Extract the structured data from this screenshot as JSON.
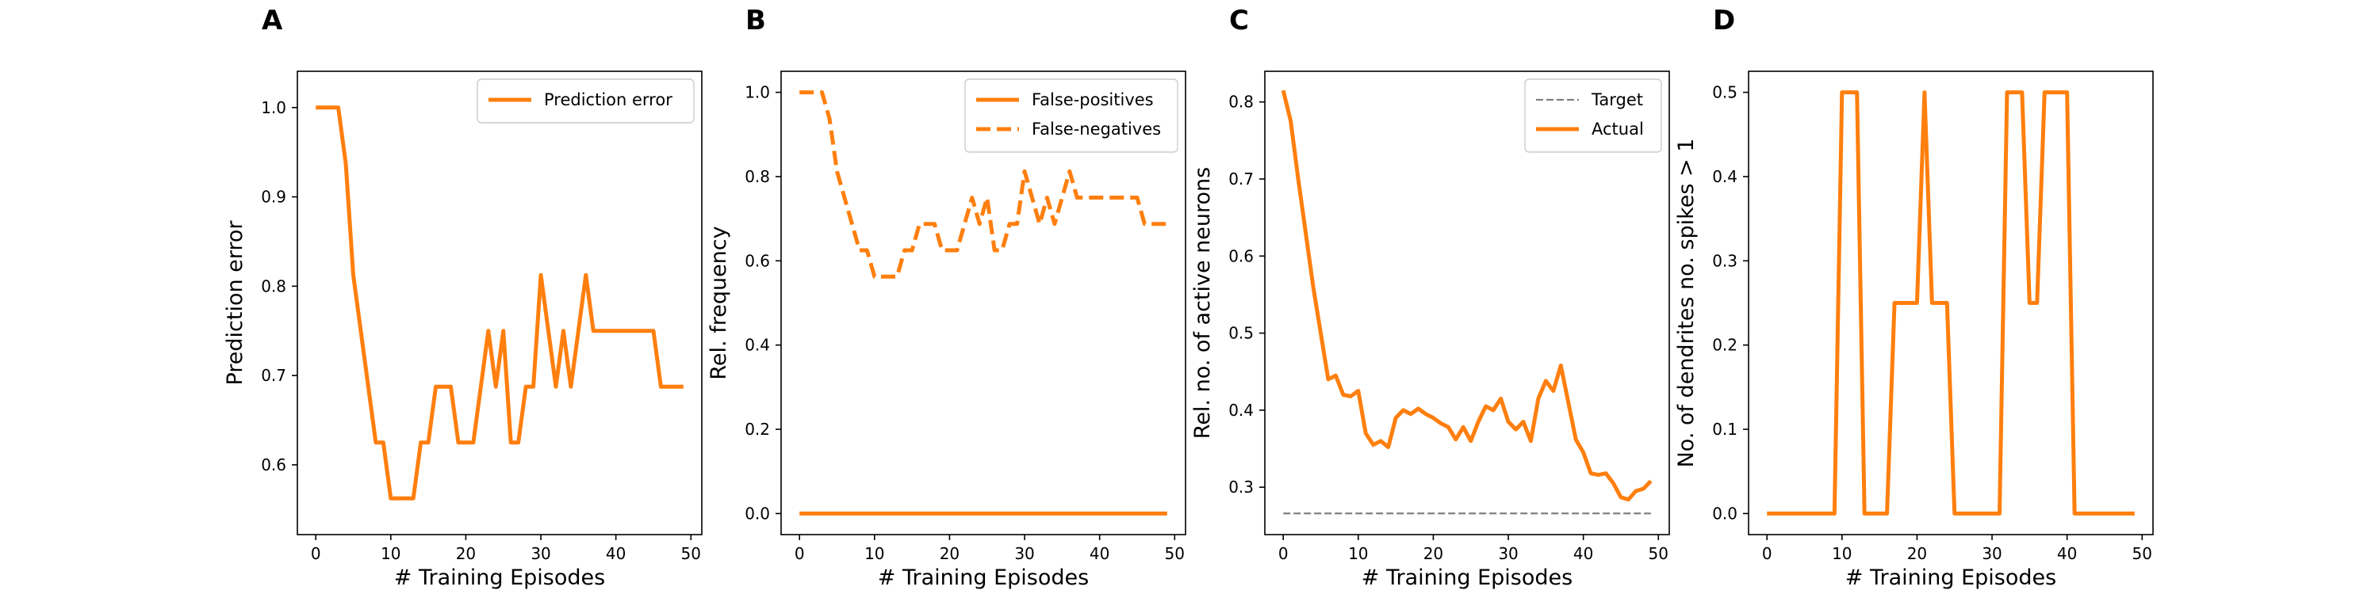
{
  "colors": {
    "series": "#ff7f0e",
    "target": "#808080",
    "axes": "#000000",
    "legend_border": "#cccccc"
  },
  "chart_data": [
    {
      "panel_label": "A",
      "type": "line",
      "xlabel": "# Training Episodes",
      "ylabel": "Prediction error",
      "xlim": [
        -2.45,
        51.45
      ],
      "ylim": [
        0.5219,
        1.0406
      ],
      "xticks": [
        0,
        10,
        20,
        30,
        40,
        50
      ],
      "yticks": [
        0.6,
        0.7,
        0.8,
        0.9,
        1.0
      ],
      "ytick_labels": [
        "0.6",
        "0.7",
        "0.8",
        "0.9",
        "1.0"
      ],
      "legend_position": "top-right",
      "x": [
        0,
        1,
        2,
        3,
        4,
        5,
        6,
        7,
        8,
        9,
        10,
        11,
        12,
        13,
        14,
        15,
        16,
        17,
        18,
        19,
        20,
        21,
        22,
        23,
        24,
        25,
        26,
        27,
        28,
        29,
        30,
        31,
        32,
        33,
        34,
        35,
        36,
        37,
        38,
        39,
        40,
        41,
        42,
        43,
        44,
        45,
        46,
        47,
        48,
        49
      ],
      "series": [
        {
          "name": "Prediction error",
          "style": "solid",
          "values": [
            1.0,
            1.0,
            1.0,
            1.0,
            0.9375,
            0.8125,
            0.75,
            0.6875,
            0.625,
            0.625,
            0.5625,
            0.5625,
            0.5625,
            0.5625,
            0.625,
            0.625,
            0.6875,
            0.6875,
            0.6875,
            0.625,
            0.625,
            0.625,
            0.6875,
            0.75,
            0.6875,
            0.75,
            0.625,
            0.625,
            0.6875,
            0.6875,
            0.8125,
            0.75,
            0.6875,
            0.75,
            0.6875,
            0.75,
            0.8125,
            0.75,
            0.75,
            0.75,
            0.75,
            0.75,
            0.75,
            0.75,
            0.75,
            0.75,
            0.6875,
            0.6875,
            0.6875,
            0.6875
          ]
        }
      ]
    },
    {
      "panel_label": "B",
      "type": "line",
      "xlabel": "# Training Episodes",
      "ylabel": "Rel. frequency",
      "xlim": [
        -2.45,
        51.45
      ],
      "ylim": [
        -0.05,
        1.05
      ],
      "xticks": [
        0,
        10,
        20,
        30,
        40,
        50
      ],
      "yticks": [
        0.0,
        0.2,
        0.4,
        0.6,
        0.8,
        1.0
      ],
      "ytick_labels": [
        "0.0",
        "0.2",
        "0.4",
        "0.6",
        "0.8",
        "1.0"
      ],
      "legend_position": "top-right",
      "x": [
        0,
        1,
        2,
        3,
        4,
        5,
        6,
        7,
        8,
        9,
        10,
        11,
        12,
        13,
        14,
        15,
        16,
        17,
        18,
        19,
        20,
        21,
        22,
        23,
        24,
        25,
        26,
        27,
        28,
        29,
        30,
        31,
        32,
        33,
        34,
        35,
        36,
        37,
        38,
        39,
        40,
        41,
        42,
        43,
        44,
        45,
        46,
        47,
        48,
        49
      ],
      "series": [
        {
          "name": "False-positives",
          "style": "solid",
          "values": [
            0,
            0,
            0,
            0,
            0,
            0,
            0,
            0,
            0,
            0,
            0,
            0,
            0,
            0,
            0,
            0,
            0,
            0,
            0,
            0,
            0,
            0,
            0,
            0,
            0,
            0,
            0,
            0,
            0,
            0,
            0,
            0,
            0,
            0,
            0,
            0,
            0,
            0,
            0,
            0,
            0,
            0,
            0,
            0,
            0,
            0,
            0,
            0,
            0,
            0
          ]
        },
        {
          "name": "False-negatives",
          "style": "dashed",
          "values": [
            1.0,
            1.0,
            1.0,
            1.0,
            0.9375,
            0.8125,
            0.75,
            0.6875,
            0.625,
            0.625,
            0.5625,
            0.5625,
            0.5625,
            0.5625,
            0.625,
            0.625,
            0.6875,
            0.6875,
            0.6875,
            0.625,
            0.625,
            0.625,
            0.6875,
            0.75,
            0.6875,
            0.75,
            0.625,
            0.625,
            0.6875,
            0.6875,
            0.8125,
            0.75,
            0.6875,
            0.75,
            0.6875,
            0.75,
            0.8125,
            0.75,
            0.75,
            0.75,
            0.75,
            0.75,
            0.75,
            0.75,
            0.75,
            0.75,
            0.6875,
            0.6875,
            0.6875,
            0.6875
          ]
        }
      ]
    },
    {
      "panel_label": "C",
      "type": "line",
      "xlabel": "# Training Episodes",
      "ylabel": "Rel. no. of active neurons",
      "xlim": [
        -2.45,
        51.45
      ],
      "ylim": [
        0.2385,
        0.8398
      ],
      "xticks": [
        0,
        10,
        20,
        30,
        40,
        50
      ],
      "yticks": [
        0.3,
        0.4,
        0.5,
        0.6,
        0.7,
        0.8
      ],
      "ytick_labels": [
        "0.3",
        "0.4",
        "0.5",
        "0.6",
        "0.7",
        "0.8"
      ],
      "legend_position": "top-right",
      "x": [
        0,
        1,
        2,
        3,
        4,
        5,
        6,
        7,
        8,
        9,
        10,
        11,
        12,
        13,
        14,
        15,
        16,
        17,
        18,
        19,
        20,
        21,
        22,
        23,
        24,
        25,
        26,
        27,
        28,
        29,
        30,
        31,
        32,
        33,
        34,
        35,
        36,
        37,
        38,
        39,
        40,
        41,
        42,
        43,
        44,
        45,
        46,
        47,
        48,
        49
      ],
      "series": [
        {
          "name": "Target",
          "style": "dashed",
          "values": [
            0.266,
            0.266,
            0.266,
            0.266,
            0.266,
            0.266,
            0.266,
            0.266,
            0.266,
            0.266,
            0.266,
            0.266,
            0.266,
            0.266,
            0.266,
            0.266,
            0.266,
            0.266,
            0.266,
            0.266,
            0.266,
            0.266,
            0.266,
            0.266,
            0.266,
            0.266,
            0.266,
            0.266,
            0.266,
            0.266,
            0.266,
            0.266,
            0.266,
            0.266,
            0.266,
            0.266,
            0.266,
            0.266,
            0.266,
            0.266,
            0.266,
            0.266,
            0.266,
            0.266,
            0.266,
            0.266,
            0.266,
            0.266,
            0.266,
            0.266
          ]
        },
        {
          "name": "Actual",
          "style": "solid",
          "values": [
            0.815,
            0.775,
            0.7,
            0.63,
            0.56,
            0.5,
            0.44,
            0.445,
            0.42,
            0.418,
            0.425,
            0.37,
            0.355,
            0.36,
            0.352,
            0.39,
            0.4,
            0.395,
            0.402,
            0.395,
            0.39,
            0.383,
            0.378,
            0.362,
            0.378,
            0.36,
            0.385,
            0.405,
            0.4,
            0.415,
            0.385,
            0.375,
            0.385,
            0.36,
            0.415,
            0.438,
            0.425,
            0.458,
            0.41,
            0.362,
            0.345,
            0.318,
            0.316,
            0.318,
            0.305,
            0.287,
            0.284,
            0.295,
            0.298,
            0.308
          ]
        }
      ]
    },
    {
      "panel_label": "D",
      "type": "line",
      "xlabel": "# Training Episodes",
      "ylabel": "No. of dendrites no. spikes > 1",
      "xlim": [
        -2.45,
        51.45
      ],
      "ylim": [
        -0.025,
        0.525
      ],
      "xticks": [
        0,
        10,
        20,
        30,
        40,
        50
      ],
      "yticks": [
        0.0,
        0.1,
        0.2,
        0.3,
        0.4,
        0.5
      ],
      "ytick_labels": [
        "0.0",
        "0.1",
        "0.2",
        "0.3",
        "0.4",
        "0.5"
      ],
      "x": [
        0,
        1,
        2,
        3,
        4,
        5,
        6,
        7,
        8,
        9,
        10,
        11,
        12,
        13,
        14,
        15,
        16,
        17,
        18,
        19,
        20,
        21,
        22,
        23,
        24,
        25,
        26,
        27,
        28,
        29,
        30,
        31,
        32,
        33,
        34,
        35,
        36,
        37,
        38,
        39,
        40,
        41,
        42,
        43,
        44,
        45,
        46,
        47,
        48,
        49
      ],
      "series": [
        {
          "style": "solid",
          "values": [
            0,
            0,
            0,
            0,
            0,
            0,
            0,
            0,
            0,
            0,
            0.5,
            0.5,
            0.5,
            0,
            0,
            0,
            0,
            0.25,
            0.25,
            0.25,
            0.25,
            0.5,
            0.25,
            0.25,
            0.25,
            0,
            0,
            0,
            0,
            0,
            0,
            0,
            0.5,
            0.5,
            0.5,
            0.25,
            0.25,
            0.5,
            0.5,
            0.5,
            0.5,
            0,
            0,
            0,
            0,
            0,
            0,
            0,
            0,
            0
          ]
        }
      ]
    }
  ]
}
